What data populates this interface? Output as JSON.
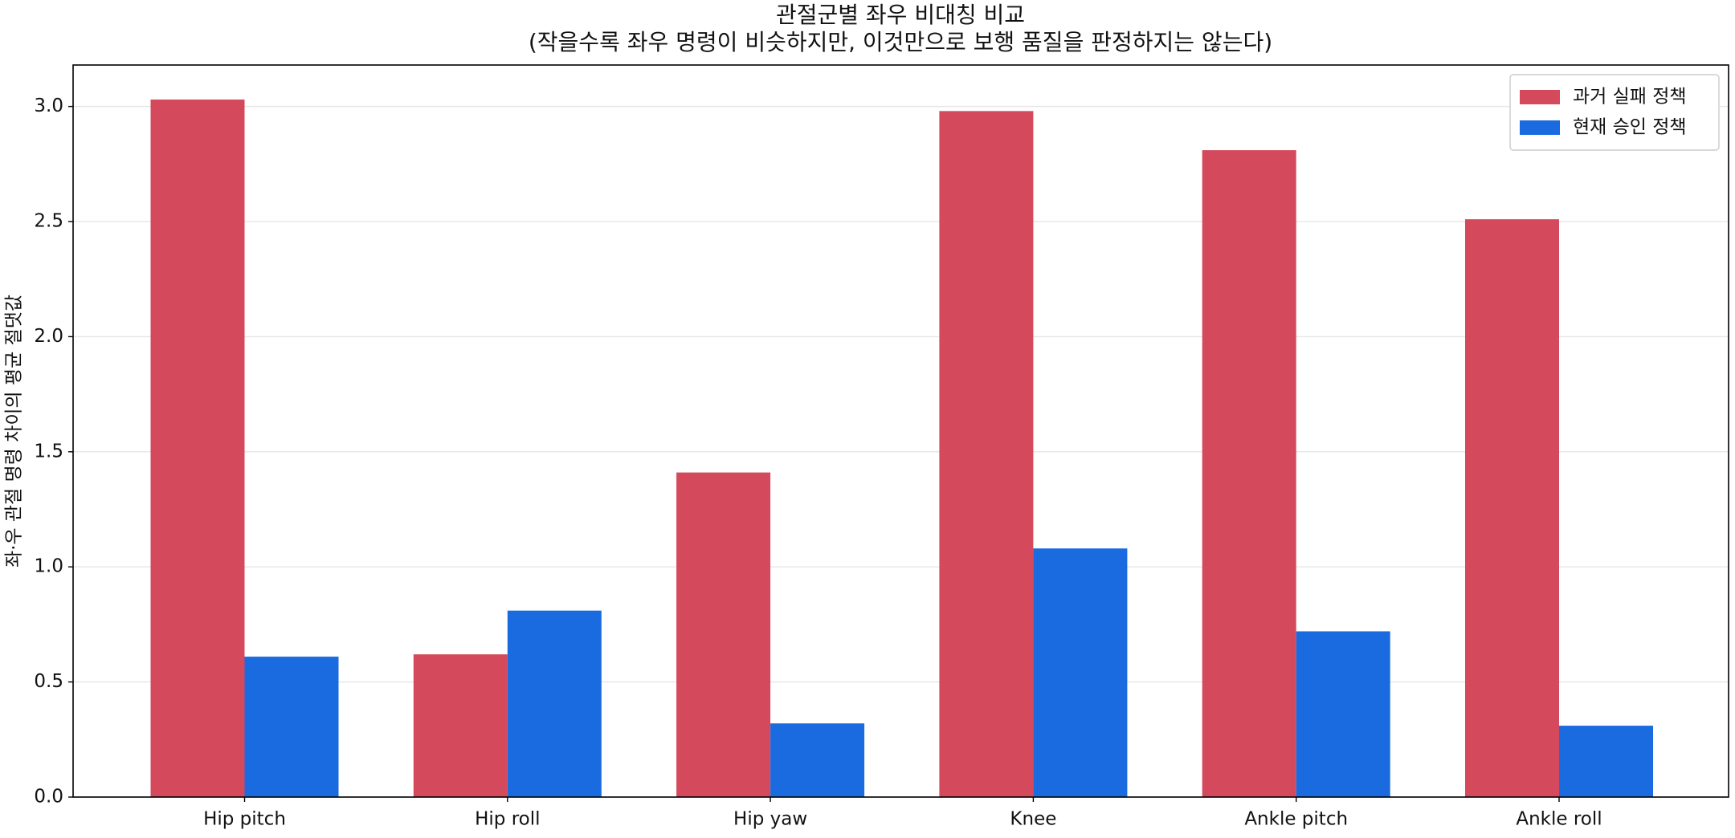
{
  "chart_data": {
    "type": "bar",
    "title": "관절군별 좌우 비대칭 비교",
    "subtitle": "(작을수록 좌우 명령이 비슷하지만, 이것만으로 보행 품질을 판정하지는 않는다)",
    "y_label": "좌·우 관절 명령 차이의 평균 절댓값",
    "categories": [
      "Hip pitch",
      "Hip roll",
      "Hip yaw",
      "Knee",
      "Ankle pitch",
      "Ankle roll"
    ],
    "series": [
      {
        "name": "과거 실패 정책",
        "color": "#d44a5c",
        "values": [
          3.03,
          0.62,
          1.41,
          2.98,
          2.81,
          2.51
        ]
      },
      {
        "name": "현재 승인 정책",
        "color": "#1a6be0",
        "values": [
          0.61,
          0.81,
          0.32,
          1.08,
          0.72,
          0.31
        ]
      }
    ],
    "ylim": [
      0,
      3.18
    ],
    "yticks": [
      {
        "value": 0,
        "label": "0.0"
      },
      0.5,
      {
        "value": 1,
        "label": "1.0"
      },
      1.5,
      {
        "value": 2,
        "label": "2.0"
      },
      2.5,
      {
        "value": 3,
        "label": "3.0"
      }
    ],
    "grid": true,
    "legend": "upper right"
  }
}
